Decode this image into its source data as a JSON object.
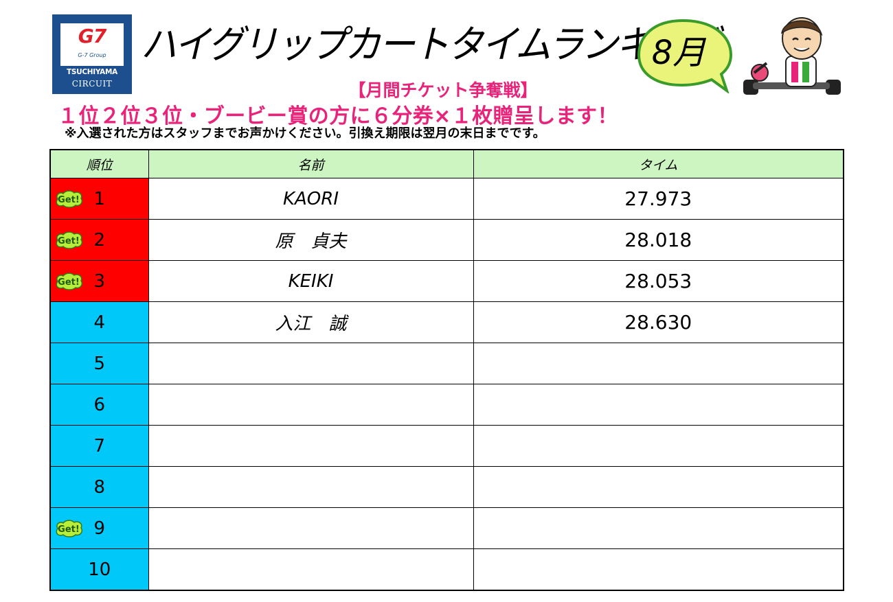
{
  "logo": {
    "brand": "G7",
    "group": "G-7 Group",
    "line1": "TSUCHIYAMA",
    "line2": "CIRCUIT"
  },
  "header": {
    "title": "ハイグリップカートタイムランキング",
    "month": "8月",
    "subtitle": "【月間チケット争奪戦】",
    "prize": "１位２位３位・ブービー賞の方に６分券×１枚贈呈します！",
    "note": "※入選された方はスタッフまでお声かけください。引換え期限は翌月の末日までです。"
  },
  "table": {
    "headers": {
      "rank": "順位",
      "name": "名前",
      "time": "タイム"
    },
    "badge": "Get!",
    "rows": [
      {
        "rank": "1",
        "name": "KAORI",
        "time": "27.973",
        "get": true,
        "color": "#ff0000"
      },
      {
        "rank": "2",
        "name": "原　貞夫",
        "time": "28.018",
        "get": true,
        "color": "#ff0000"
      },
      {
        "rank": "3",
        "name": "KEIKI",
        "time": "28.053",
        "get": true,
        "color": "#ff0000"
      },
      {
        "rank": "4",
        "name": "入江　誠",
        "time": "28.630",
        "get": false,
        "color": "#00c8f8"
      },
      {
        "rank": "5",
        "name": "",
        "time": "",
        "get": false,
        "color": "#00c8f8"
      },
      {
        "rank": "6",
        "name": "",
        "time": "",
        "get": false,
        "color": "#00c8f8"
      },
      {
        "rank": "7",
        "name": "",
        "time": "",
        "get": false,
        "color": "#00c8f8"
      },
      {
        "rank": "8",
        "name": "",
        "time": "",
        "get": false,
        "color": "#00c8f8"
      },
      {
        "rank": "9",
        "name": "",
        "time": "",
        "get": true,
        "color": "#00c8f8"
      },
      {
        "rank": "10",
        "name": "",
        "time": "",
        "get": false,
        "color": "#00c8f8"
      }
    ]
  }
}
